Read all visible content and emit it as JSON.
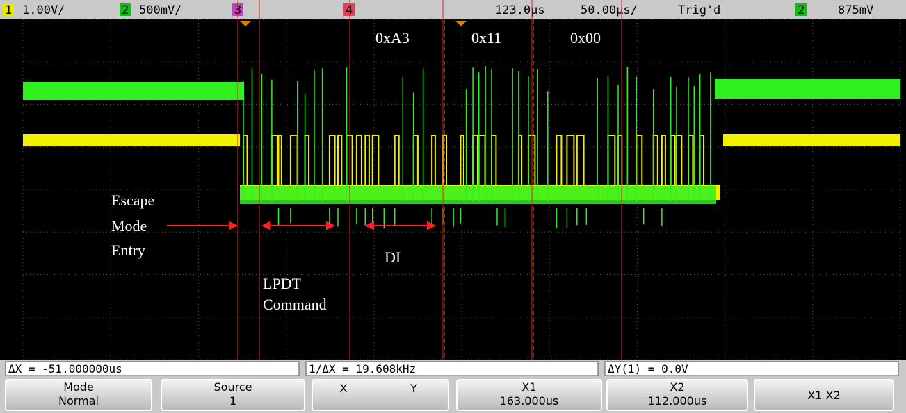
{
  "top_bar": {
    "ch1_label": "1",
    "ch1_scale": "1.00V/",
    "ch2_label": "2",
    "ch2_scale": "500mV/",
    "ch3_label": "3",
    "ch4_label": "4",
    "delay": "123.0µs",
    "timebase": "50.00µs/",
    "trigger_status": "Trig'd",
    "trigger_source": "2",
    "trigger_level": "875mV"
  },
  "annotations": {
    "byte1": "0xA3",
    "byte2": "0x11",
    "byte3": "0x00",
    "escape": "Escape",
    "mode": "Mode",
    "entry": "Entry",
    "di": "DI",
    "lpdt": "LPDT",
    "command": "Command"
  },
  "measurements": [
    "ΔX = -51.000000us",
    "1/ΔX = 19.608kHz",
    "ΔY(1) = 0.0V"
  ],
  "softkeys": [
    {
      "top": "Mode",
      "bottom": "Normal"
    },
    {
      "top": "Source",
      "bottom": "1"
    },
    {
      "top": "X",
      "bottom": "Y"
    },
    {
      "top": "X1",
      "bottom": "163.000us"
    },
    {
      "top": "X2",
      "bottom": "112.000us"
    },
    {
      "top": "X1 X2"
    }
  ]
}
